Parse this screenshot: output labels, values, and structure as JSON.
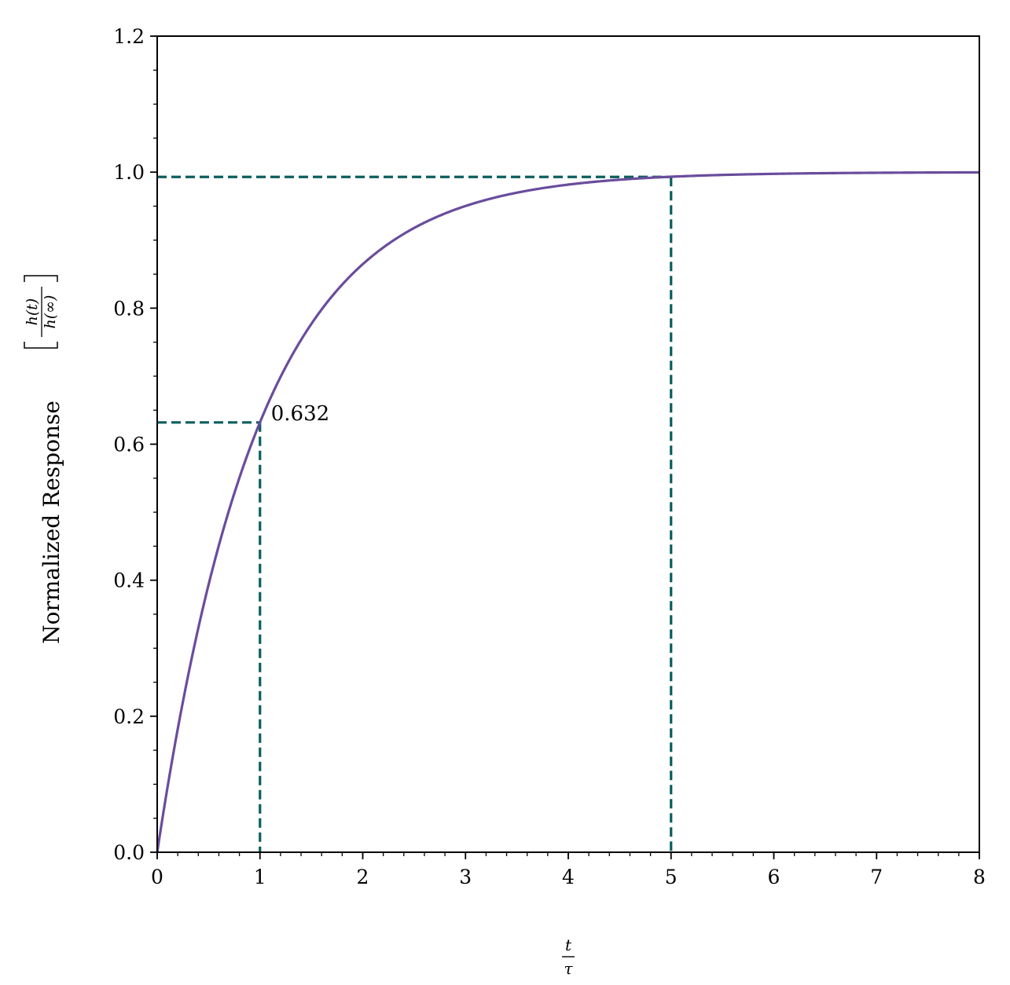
{
  "chart_data": {
    "type": "line",
    "title": "",
    "xlabel": {
      "numerator": "t",
      "denominator": "τ"
    },
    "ylabel": {
      "text": "Normalized Response",
      "bracket_numerator": "h(t)",
      "bracket_denominator": "h(∞)"
    },
    "xlim": [
      0,
      8
    ],
    "ylim": [
      0,
      1.2
    ],
    "x_ticks": [
      "0",
      "1",
      "2",
      "3",
      "4",
      "5",
      "6",
      "7",
      "8"
    ],
    "y_ticks": [
      "0.0",
      "0.2",
      "0.4",
      "0.6",
      "0.8",
      "1.0",
      "1.2"
    ],
    "x_tick_values": [
      0,
      1,
      2,
      3,
      4,
      5,
      6,
      7,
      8
    ],
    "y_tick_values": [
      0,
      0.2,
      0.4,
      0.6,
      0.8,
      1.0,
      1.2
    ],
    "x_minor_step": 0.2,
    "y_minor_step": 0.05,
    "grid": false,
    "legend": "none",
    "series": [
      {
        "function": "1 - exp(-x)",
        "color": "#6a4c9c",
        "x": [
          0,
          0.25,
          0.5,
          0.75,
          1,
          1.25,
          1.5,
          1.75,
          2,
          2.5,
          3,
          3.5,
          4,
          4.5,
          5,
          5.5,
          6,
          6.5,
          7,
          7.5,
          8
        ],
        "y": [
          0,
          0.221,
          0.393,
          0.528,
          0.632,
          0.713,
          0.777,
          0.826,
          0.865,
          0.918,
          0.95,
          0.97,
          0.982,
          0.989,
          0.993,
          0.996,
          0.998,
          0.998,
          0.999,
          0.999,
          1.0
        ]
      }
    ],
    "reference_lines": {
      "color": "#0b5e5e",
      "points": [
        {
          "x": 1,
          "y": 0.632
        },
        {
          "x": 5,
          "y": 0.993
        }
      ]
    },
    "annotations": [
      {
        "text": "0.632",
        "x": 1,
        "y": 0.632
      }
    ]
  }
}
